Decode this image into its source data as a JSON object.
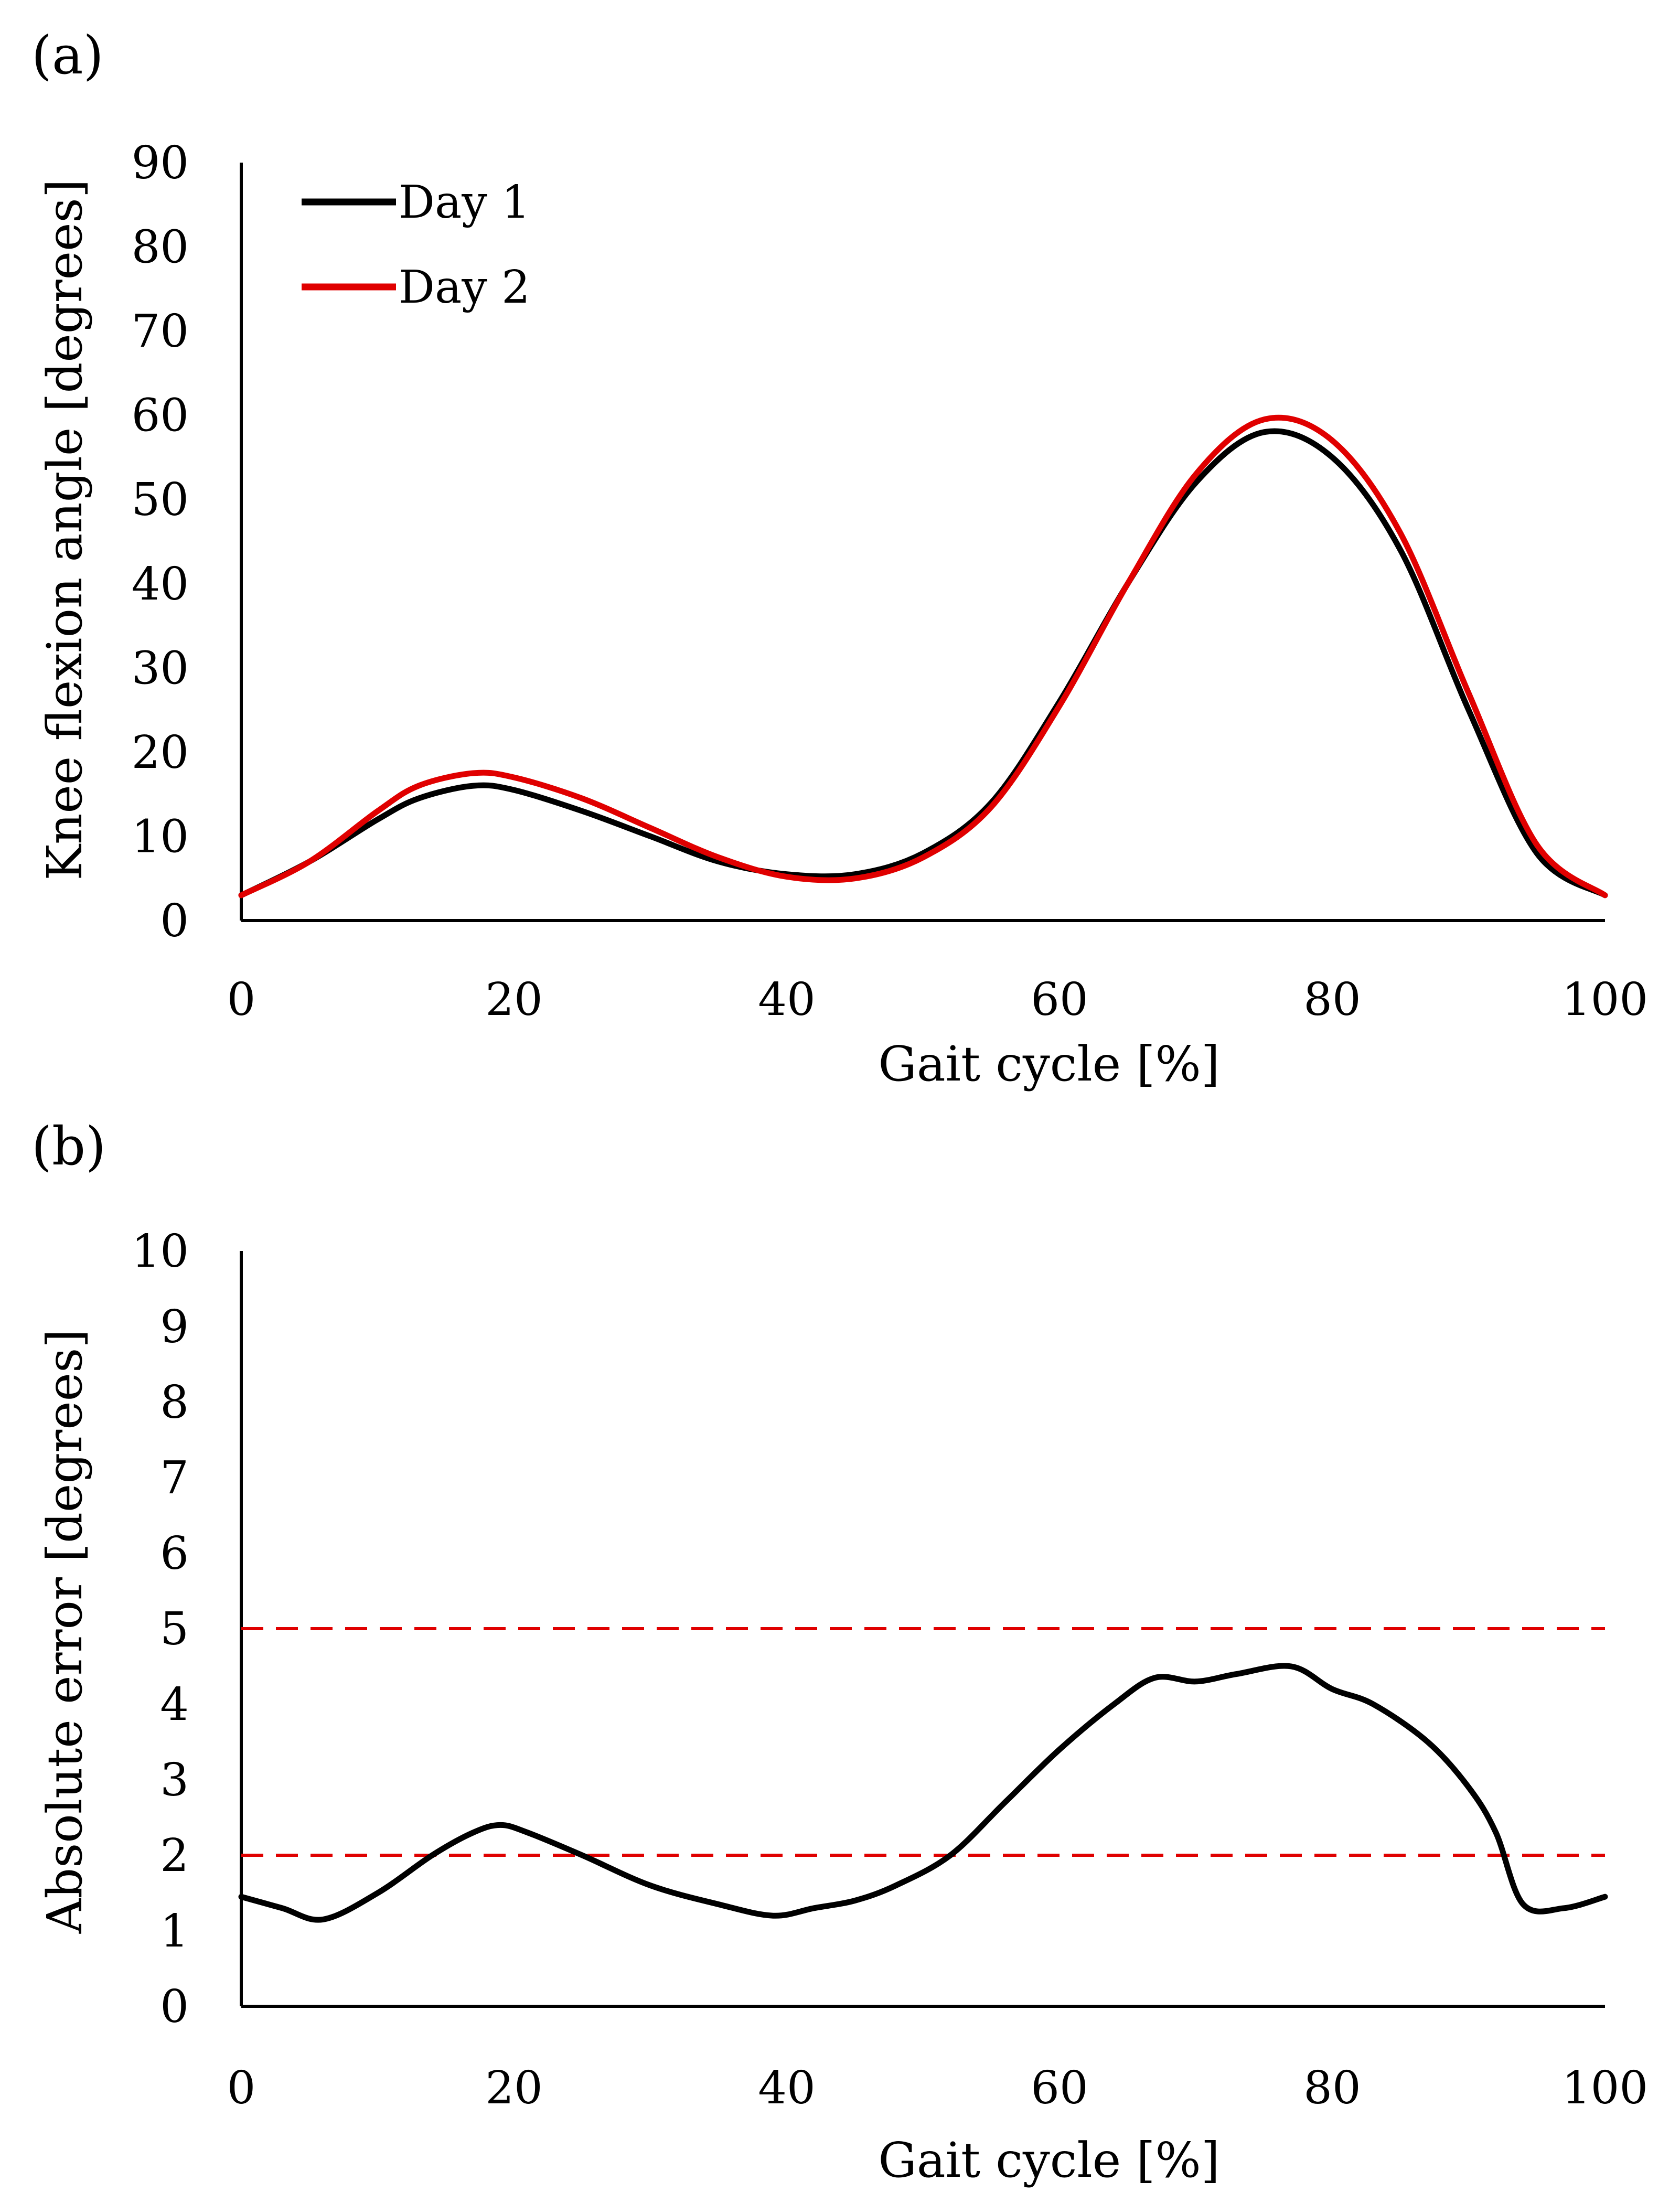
{
  "chart_data": [
    {
      "panel_label": "(a)",
      "type": "line",
      "xlabel": "Gait cycle [%]",
      "ylabel": "Knee flexion angle [degrees]",
      "xlim": [
        0,
        100
      ],
      "ylim": [
        0,
        90
      ],
      "xticks": [
        0,
        20,
        40,
        60,
        80,
        100
      ],
      "yticks": [
        0,
        10,
        20,
        30,
        40,
        50,
        60,
        70,
        80,
        90
      ],
      "xtick_labels": [
        "0",
        "20",
        "40",
        "60",
        "80",
        "100"
      ],
      "ytick_labels": [
        "0",
        "10",
        "20",
        "30",
        "40",
        "50",
        "60",
        "70",
        "80",
        "90"
      ],
      "grid": false,
      "legend_position": "top-left",
      "x": [
        0,
        5,
        10,
        13,
        17,
        20,
        25,
        30,
        35,
        40,
        45,
        50,
        55,
        60,
        65,
        70,
        75,
        80,
        85,
        90,
        95,
        100
      ],
      "series": [
        {
          "name": "Day 1",
          "color": "#000000",
          "values": [
            3,
            7,
            12,
            14.5,
            16,
            15.5,
            13,
            10,
            7,
            5.5,
            5.5,
            8,
            14,
            26,
            40,
            52,
            58,
            55,
            44,
            25,
            8,
            3
          ]
        },
        {
          "name": "Day 2",
          "color": "#e00000",
          "values": [
            3,
            7,
            13,
            16,
            17.5,
            17,
            14.5,
            11,
            7.5,
            5.2,
            5.0,
            7.5,
            13.5,
            25.5,
            40,
            53,
            59.5,
            57,
            46,
            27,
            9,
            3
          ]
        }
      ]
    },
    {
      "panel_label": "(b)",
      "type": "line",
      "xlabel": "Gait cycle [%]",
      "ylabel": "Absolute error [degrees]",
      "xlim": [
        0,
        100
      ],
      "ylim": [
        0,
        10
      ],
      "xticks": [
        0,
        20,
        40,
        60,
        80,
        100
      ],
      "yticks": [
        0,
        1,
        2,
        3,
        4,
        5,
        6,
        7,
        8,
        9,
        10
      ],
      "xtick_labels": [
        "0",
        "20",
        "40",
        "60",
        "80",
        "100"
      ],
      "ytick_labels": [
        "0",
        "1",
        "2",
        "3",
        "4",
        "5",
        "6",
        "7",
        "8",
        "9",
        "10"
      ],
      "grid": false,
      "x": [
        0,
        3,
        6,
        10,
        14,
        17,
        19,
        21,
        25,
        30,
        35,
        39,
        42,
        45,
        48,
        52,
        56,
        60,
        64,
        67,
        70,
        73,
        77,
        80,
        83,
        87,
        90,
        92,
        94,
        97,
        100
      ],
      "series": [
        {
          "name": "Absolute error",
          "color": "#000000",
          "values": [
            1.45,
            1.3,
            1.15,
            1.5,
            2.0,
            2.3,
            2.4,
            2.3,
            2.0,
            1.6,
            1.35,
            1.2,
            1.3,
            1.4,
            1.6,
            2.0,
            2.7,
            3.4,
            4.0,
            4.35,
            4.3,
            4.4,
            4.5,
            4.2,
            4.0,
            3.5,
            2.9,
            2.3,
            1.35,
            1.3,
            1.45
          ]
        }
      ],
      "reference_lines": [
        {
          "y": 5,
          "color": "#e00000",
          "style": "dashed"
        },
        {
          "y": 2,
          "color": "#e00000",
          "style": "dashed"
        }
      ]
    }
  ]
}
